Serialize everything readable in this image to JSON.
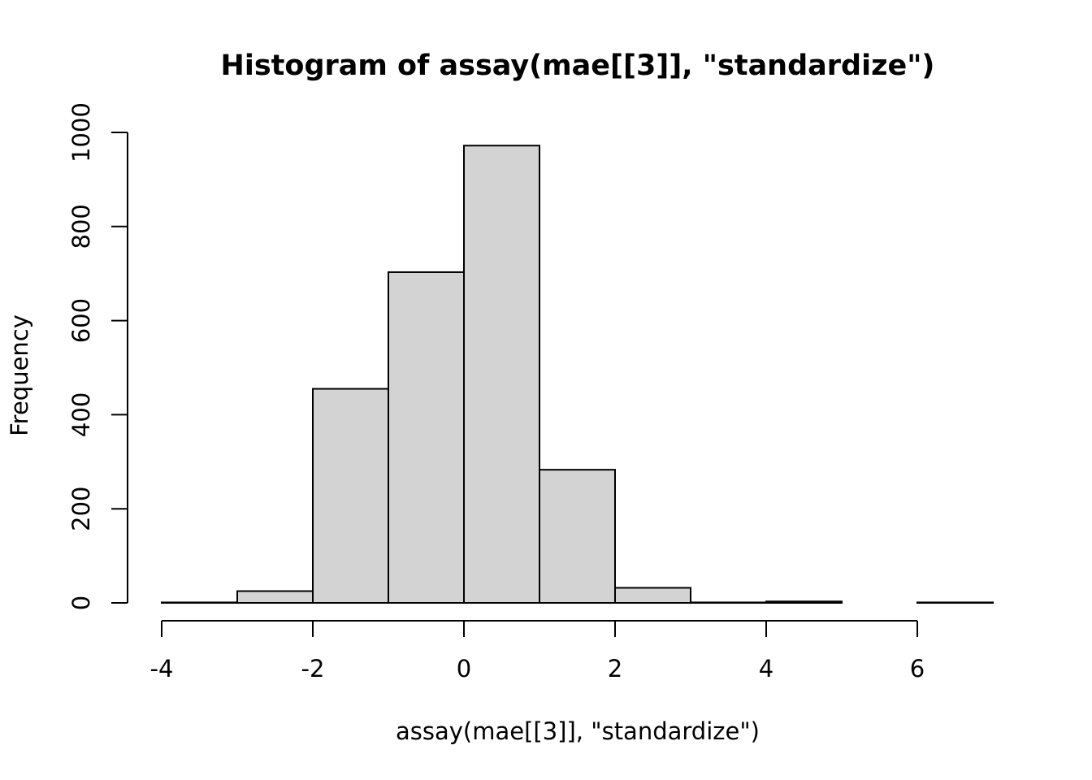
{
  "chart_data": {
    "type": "bar",
    "title": "Histogram of assay(mae[[3]], \"standardize\")",
    "xlabel": "assay(mae[[3]], \"standardize\")",
    "ylabel": "Frequency",
    "xlim": [
      -4,
      7
    ],
    "ylim": [
      0,
      1000
    ],
    "x_ticks": [
      -4,
      -2,
      0,
      2,
      4,
      6
    ],
    "y_ticks": [
      0,
      200,
      400,
      600,
      800,
      1000
    ],
    "bins": [
      {
        "start": -4,
        "end": -3,
        "count": 1
      },
      {
        "start": -3,
        "end": -2,
        "count": 25
      },
      {
        "start": -2,
        "end": -1,
        "count": 455
      },
      {
        "start": -1,
        "end": 0,
        "count": 703
      },
      {
        "start": 0,
        "end": 1,
        "count": 972
      },
      {
        "start": 1,
        "end": 2,
        "count": 283
      },
      {
        "start": 2,
        "end": 3,
        "count": 32
      },
      {
        "start": 3,
        "end": 4,
        "count": 1
      },
      {
        "start": 4,
        "end": 5,
        "count": 3
      },
      {
        "start": 5,
        "end": 6,
        "count": 0
      },
      {
        "start": 6,
        "end": 7,
        "count": 1
      }
    ],
    "grid": false,
    "bar_fill": "#d3d3d3",
    "bar_stroke": "#000000"
  }
}
